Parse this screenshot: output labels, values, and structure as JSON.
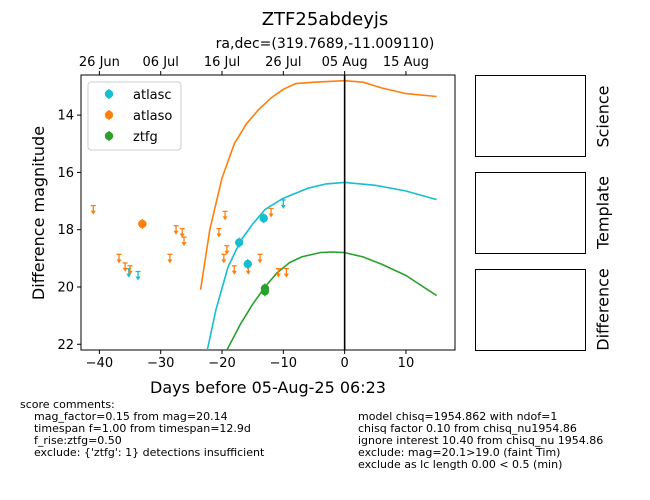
{
  "chart_data": {
    "type": "scatter",
    "title": "ZTF25abdeyjs",
    "subtitle": "ra,dec=(319.7689,-11.009110)",
    "xlabel": "Days before 05-Aug-25 06:23",
    "ylabel": "Difference magnitude",
    "xlim": [
      -43,
      18
    ],
    "ylim": [
      22.2,
      12.6
    ],
    "y_inverted": true,
    "x_ticks": [
      -40,
      -30,
      -20,
      -10,
      0,
      10
    ],
    "y_ticks": [
      14,
      16,
      18,
      20,
      22
    ],
    "top_axis_ticks": [
      {
        "label": "26 Jun",
        "x": -40
      },
      {
        "label": "06 Jul",
        "x": -30
      },
      {
        "label": "16 Jul",
        "x": -20
      },
      {
        "label": "26 Jul",
        "x": -10
      },
      {
        "label": "05 Aug",
        "x": 0
      },
      {
        "label": "15 Aug",
        "x": 10
      }
    ],
    "vline_x": 0,
    "legend_position": "top-left",
    "series": [
      {
        "name": "atlasc",
        "color": "#17becf",
        "detections": [
          [
            -17.2,
            18.45
          ],
          [
            -15.8,
            19.2
          ],
          [
            -13.2,
            17.6
          ]
        ],
        "upper_limits": [
          [
            -35.2,
            19.5
          ],
          [
            -33.7,
            19.6
          ],
          [
            -10.0,
            17.1
          ]
        ],
        "model": [
          [
            -22.4,
            22.2
          ],
          [
            -21,
            20.8
          ],
          [
            -19,
            19.3
          ],
          [
            -17,
            18.4
          ],
          [
            -15,
            17.8
          ],
          [
            -13,
            17.3
          ],
          [
            -10,
            16.9
          ],
          [
            -6,
            16.55
          ],
          [
            -3,
            16.4
          ],
          [
            0,
            16.35
          ],
          [
            5,
            16.45
          ],
          [
            10,
            16.65
          ],
          [
            15,
            16.95
          ]
        ]
      },
      {
        "name": "atlaso",
        "color": "#ff7f0e",
        "detections": [
          [
            -33.0,
            17.8
          ]
        ],
        "upper_limits": [
          [
            -41.0,
            17.3
          ],
          [
            -36.8,
            19.0
          ],
          [
            -35.8,
            19.3
          ],
          [
            -35.0,
            19.4
          ],
          [
            -28.5,
            19.0
          ],
          [
            -27.5,
            18.0
          ],
          [
            -26.5,
            18.1
          ],
          [
            -26.2,
            18.4
          ],
          [
            -20.5,
            18.1
          ],
          [
            -19.7,
            19.0
          ],
          [
            -19.5,
            17.5
          ],
          [
            -19.2,
            18.7
          ],
          [
            -18.0,
            19.4
          ],
          [
            -15.7,
            19.4
          ],
          [
            -13.8,
            19.0
          ],
          [
            -12.0,
            17.4
          ],
          [
            -10.8,
            19.5
          ],
          [
            -9.5,
            19.5
          ]
        ],
        "model": [
          [
            -23.5,
            20.1
          ],
          [
            -22,
            18.0
          ],
          [
            -20,
            16.2
          ],
          [
            -18,
            15.0
          ],
          [
            -16,
            14.3
          ],
          [
            -14,
            13.8
          ],
          [
            -12,
            13.4
          ],
          [
            -10,
            13.1
          ],
          [
            -8,
            12.9
          ],
          [
            -5,
            12.85
          ],
          [
            0,
            12.8
          ],
          [
            3,
            12.85
          ],
          [
            6,
            13.05
          ],
          [
            10,
            13.25
          ],
          [
            15,
            13.35
          ]
        ]
      },
      {
        "name": "ztfg",
        "color": "#2ca02c",
        "detections": [
          [
            -13.0,
            20.05
          ],
          [
            -13.0,
            20.15
          ]
        ],
        "upper_limits": [],
        "model": [
          [
            -19.2,
            22.2
          ],
          [
            -17,
            21.3
          ],
          [
            -15,
            20.6
          ],
          [
            -13,
            20.0
          ],
          [
            -11,
            19.5
          ],
          [
            -9,
            19.15
          ],
          [
            -7,
            18.95
          ],
          [
            -4,
            18.8
          ],
          [
            -2,
            18.78
          ],
          [
            0,
            18.8
          ],
          [
            3,
            18.95
          ],
          [
            6,
            19.2
          ],
          [
            10,
            19.6
          ],
          [
            15,
            20.3
          ]
        ]
      }
    ]
  },
  "panels": [
    {
      "label": "Science"
    },
    {
      "label": "Template"
    },
    {
      "label": "Difference"
    }
  ],
  "comments_left": "score comments:\n    mag_factor=0.15 from mag=20.14\n    timespan f=1.00 from timespan=12.9d\n    f_rise:ztfg=0.50\n    exclude: {'ztfg': 1} detections insufficient",
  "comments_right": "model chisq=1954.862 with ndof=1\nchisq factor 0.10 from chisq_nu1954.86\nignore interest 10.40 from chisq_nu 1954.86\nexclude: mag=20.1>19.0 (faint Tim)\nexclude as lc length 0.00 < 0.5 (min)"
}
